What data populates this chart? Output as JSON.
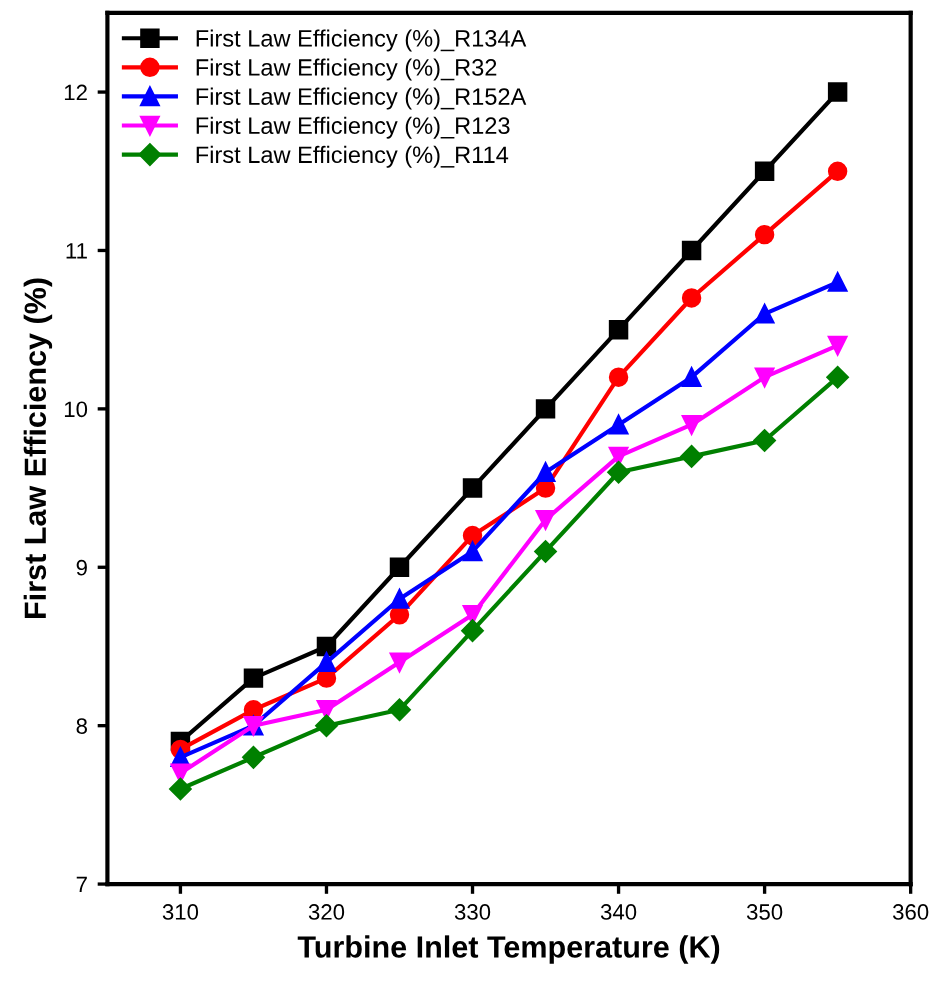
{
  "chart_data": {
    "type": "line",
    "xlabel": "Turbine Inlet Temperature (K)",
    "ylabel": "First Law Efficiency (%)",
    "x": [
      310,
      315,
      320,
      325,
      330,
      335,
      340,
      345,
      350,
      355
    ],
    "xlim": [
      305,
      360
    ],
    "xticks": [
      310,
      320,
      330,
      340,
      350,
      360
    ],
    "ylim": [
      7,
      12.5
    ],
    "yticks": [
      7,
      8,
      9,
      10,
      11,
      12
    ],
    "grid": false,
    "legend": "top left",
    "series": [
      {
        "name": "First Law Efficiency (%)_R134A",
        "color": "#000000",
        "marker": "square",
        "values": [
          7.9,
          8.3,
          8.5,
          9.0,
          9.5,
          10.0,
          10.5,
          11.0,
          11.5,
          12.0
        ]
      },
      {
        "name": "First Law Efficiency (%)_R32",
        "color": "#ff0000",
        "marker": "circle",
        "values": [
          7.85,
          8.1,
          8.3,
          8.7,
          9.2,
          9.5,
          10.2,
          10.7,
          11.1,
          11.5
        ]
      },
      {
        "name": "First Law Efficiency (%)_R152A",
        "color": "#0000ff",
        "marker": "triangle",
        "values": [
          7.8,
          8.0,
          8.4,
          8.8,
          9.1,
          9.6,
          9.9,
          10.2,
          10.6,
          10.8
        ]
      },
      {
        "name": "First Law Efficiency (%)_R123",
        "color": "#ff00ff",
        "marker": "triangle_down",
        "values": [
          7.7,
          8.0,
          8.1,
          8.4,
          8.7,
          9.3,
          9.7,
          9.9,
          10.2,
          10.4
        ]
      },
      {
        "name": "First Law Efficiency (%)_R114",
        "color": "#008000",
        "marker": "diamond",
        "values": [
          7.6,
          7.8,
          8.0,
          8.1,
          8.6,
          9.1,
          9.6,
          9.7,
          9.8,
          10.2
        ]
      }
    ]
  }
}
